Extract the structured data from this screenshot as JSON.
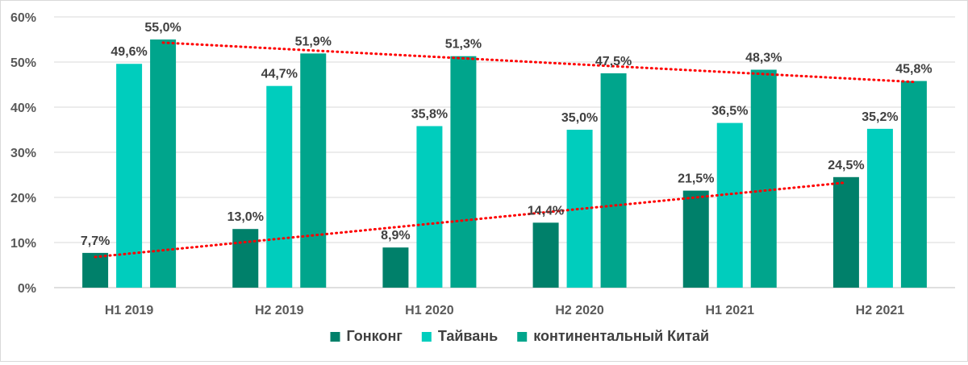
{
  "chart_data": {
    "type": "bar",
    "title": "",
    "xlabel": "",
    "ylabel": "",
    "ylim": [
      0,
      60
    ],
    "yticks": [
      "0%",
      "10%",
      "20%",
      "30%",
      "40%",
      "50%",
      "60%"
    ],
    "grid": true,
    "legend_position": "bottom",
    "categories": [
      "H1 2019",
      "H2 2019",
      "H1 2020",
      "H2 2020",
      "H1 2021",
      "H2 2021"
    ],
    "series": [
      {
        "name": "Гонконг",
        "color": "#00806a",
        "values": [
          7.7,
          13.0,
          8.9,
          14.4,
          21.5,
          24.5
        ],
        "labels": [
          "7,7%",
          "13,0%",
          "8,9%",
          "14,4%",
          "21,5%",
          "24,5%"
        ]
      },
      {
        "name": "Тайвань",
        "color": "#00cdbd",
        "values": [
          49.6,
          44.7,
          35.8,
          35.0,
          36.5,
          35.2
        ],
        "labels": [
          "49,6%",
          "44,7%",
          "35,8%",
          "35,0%",
          "36,5%",
          "35,2%"
        ]
      },
      {
        "name": "континентальный Китай",
        "color": "#00a58c",
        "values": [
          55.0,
          51.9,
          51.3,
          47.5,
          48.3,
          45.8
        ],
        "labels": [
          "55,0%",
          "51,9%",
          "51,3%",
          "47,5%",
          "48,3%",
          "45,8%"
        ]
      }
    ],
    "trendlines": [
      {
        "series": "Гонконг",
        "color": "#ff0000",
        "style": "dotted",
        "start": 6.8,
        "end": 23.3
      },
      {
        "series": "континентальный Китай",
        "color": "#ff0000",
        "style": "dotted",
        "start": 54.3,
        "end": 45.6
      }
    ]
  }
}
